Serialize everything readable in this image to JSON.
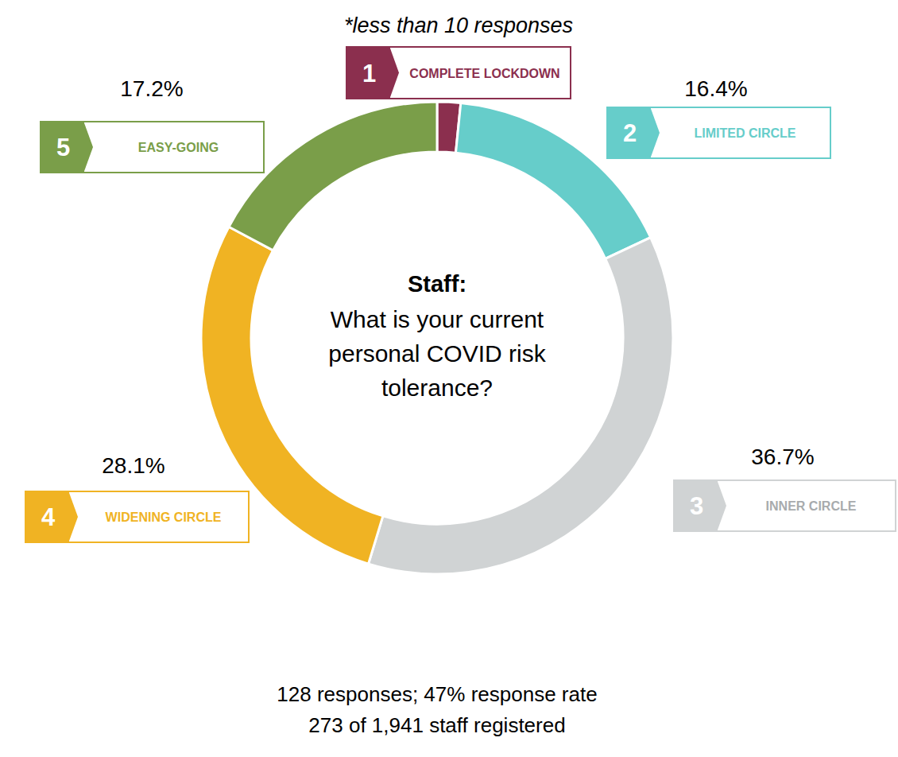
{
  "chart_data": {
    "type": "donut",
    "title": "Staff:",
    "subtitle": [
      "What is your current",
      "personal COVID risk",
      "tolerance?"
    ],
    "annotation": "*less than 10 responses",
    "categories": [
      "COMPLETE LOCKDOWN",
      "LIMITED CIRCLE",
      "INNER CIRCLE",
      "WIDENING CIRCLE",
      "EASY-GOING"
    ],
    "numbers": [
      1,
      2,
      3,
      4,
      5
    ],
    "values": [
      1.6,
      16.4,
      36.7,
      28.1,
      17.2
    ],
    "value_labels": [
      null,
      "16.4%",
      "36.7%",
      "28.1%",
      "17.2%"
    ],
    "data_labels": true,
    "colors": [
      "#8b2f4e",
      "#66cdca",
      "#d0d3d4",
      "#f0b323",
      "#7a9e49"
    ],
    "notes": [
      "128 responses; 47% response rate",
      "273 of 1,941 staff registered"
    ]
  }
}
